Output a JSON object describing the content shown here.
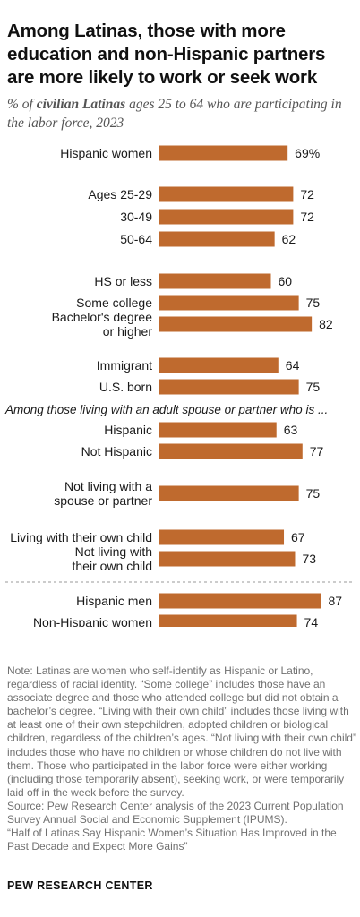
{
  "title": "Among Latinas, those with more education and non-Hispanic partners are more likely to work or seek work",
  "subtitle_prefix": "% of ",
  "subtitle_bold": "civilian Latinas",
  "subtitle_suffix": " ages 25 to 64 who are participating in the labor force, 2023",
  "colors": {
    "bar": "#bf6a2e",
    "separator": "#9a9a9a"
  },
  "chart_data": {
    "type": "bar",
    "orientation": "horizontal",
    "value_suffix_first": "%",
    "xlim": [
      0,
      100
    ],
    "annotations": [
      "Among those living with an adult spouse or partner who is ..."
    ],
    "categories": [
      "Hispanic women",
      "Ages 25-29",
      "30-49",
      "50-64",
      "HS or less",
      "Some college",
      "Bachelor's degree or higher",
      "Immigrant",
      "U.S. born",
      "Hispanic",
      "Not Hispanic",
      "Not living with a spouse or partner",
      "Living with their own child",
      "Not living with their own child",
      "Hispanic men",
      "Non-Hispanic women"
    ],
    "values": [
      69,
      72,
      72,
      62,
      60,
      75,
      82,
      64,
      75,
      63,
      77,
      75,
      67,
      73,
      87,
      74
    ],
    "rows": [
      {
        "label": [
          "Hispanic women"
        ],
        "value": 69,
        "value_text": "69%"
      },
      {
        "label": [
          "Ages 25-29"
        ],
        "value": 72,
        "value_text": "72"
      },
      {
        "label": [
          "30-49"
        ],
        "value": 72,
        "value_text": "72"
      },
      {
        "label": [
          "50-64"
        ],
        "value": 62,
        "value_text": "62"
      },
      {
        "label": [
          "HS or less"
        ],
        "value": 60,
        "value_text": "60"
      },
      {
        "label": [
          "Some college"
        ],
        "value": 75,
        "value_text": "75"
      },
      {
        "label": [
          "Bachelor's degree",
          "or higher"
        ],
        "value": 82,
        "value_text": "82"
      },
      {
        "label": [
          "Immigrant"
        ],
        "value": 64,
        "value_text": "64"
      },
      {
        "label": [
          "U.S. born"
        ],
        "value": 75,
        "value_text": "75"
      },
      {
        "label": [
          "Hispanic"
        ],
        "value": 63,
        "value_text": "63"
      },
      {
        "label": [
          "Not Hispanic"
        ],
        "value": 77,
        "value_text": "77"
      },
      {
        "label": [
          "Not living with a",
          "spouse or partner"
        ],
        "value": 75,
        "value_text": "75"
      },
      {
        "label": [
          "Living with their own child"
        ],
        "value": 67,
        "value_text": "67"
      },
      {
        "label": [
          "Not living with",
          "their own child"
        ],
        "value": 73,
        "value_text": "73"
      },
      {
        "label": [
          "Hispanic men"
        ],
        "value": 87,
        "value_text": "87"
      },
      {
        "label": [
          "Non-Hispanic women"
        ],
        "value": 74,
        "value_text": "74"
      }
    ]
  },
  "note": "Note: Latinas are women who self-identify as Hispanic or Latino, regardless of racial identity. “Some college” includes those have an associate degree and those who attended college but did not obtain a bachelor’s degree. “Living with their own child” includes those living with at least one of their own stepchildren, adopted children or biological children, regardless of the children’s ages. “Not living with their own child” includes those who have no children or whose children do not live with them. Those who participated in the labor force were either working (including those temporarily absent), seeking work, or were temporarily laid off in the week before the survey.",
  "source": "Source: Pew Research Center analysis of the 2023 Current Population Survey Annual Social and Economic Supplement (IPUMS).",
  "report": "“Half of Latinas Say Hispanic Women’s Situation Has Improved in the Past Decade and Expect More Gains”",
  "brand": "PEW RESEARCH CENTER"
}
